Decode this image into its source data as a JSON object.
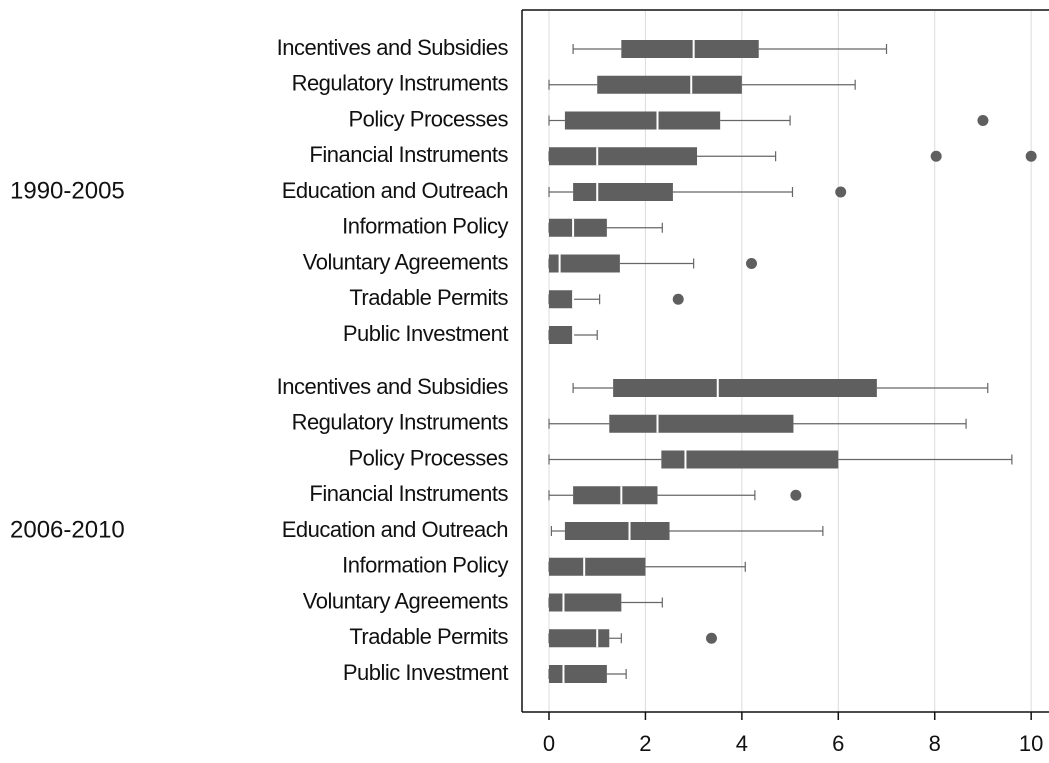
{
  "chart_data": {
    "type": "box",
    "xlim": [
      -0.56,
      10.37
    ],
    "xticks": [
      0,
      2,
      4,
      6,
      8,
      10
    ],
    "grid": true,
    "color": "#5f5f5f",
    "groups": [
      {
        "label": "1990-2005",
        "categories": [
          "Incentives and Subsidies",
          "Regulatory Instruments",
          "Policy Processes",
          "Financial Instruments",
          "Education and Outreach",
          "Information Policy",
          "Voluntary Agreements",
          "Tradable Permits",
          "Public Investment"
        ],
        "min": [
          0.5,
          0,
          0,
          0,
          0,
          0,
          0,
          0,
          0
        ],
        "q1": [
          1.5,
          1.0,
          0.33,
          0,
          0.5,
          0,
          0,
          0,
          0
        ],
        "median": [
          3.0,
          2.95,
          2.25,
          1.0,
          1.0,
          0.5,
          0.22,
          0.5,
          0.5
        ],
        "q3": [
          4.35,
          4.0,
          3.55,
          3.07,
          2.57,
          1.2,
          1.47,
          0.5,
          0.5
        ],
        "max": [
          7.0,
          6.35,
          5.0,
          4.7,
          5.05,
          2.35,
          3.0,
          1.05,
          1.0
        ],
        "outliers": [
          [],
          [],
          [
            9.0
          ],
          [
            8.03,
            10
          ],
          [
            6.05
          ],
          [],
          [
            4.2
          ],
          [
            2.68
          ],
          []
        ]
      },
      {
        "label": "2006-2010",
        "categories": [
          "Incentives and Subsidies",
          "Regulatory Instruments",
          "Policy Processes",
          "Financial Instruments",
          "Education and Outreach",
          "Information Policy",
          "Voluntary Agreements",
          "Tradable Permits",
          "Public Investment"
        ],
        "min": [
          0.5,
          0,
          0,
          0,
          0.05,
          0,
          0,
          0,
          0
        ],
        "q1": [
          1.33,
          1.25,
          2.33,
          0.5,
          0.33,
          0,
          0,
          0,
          0
        ],
        "median": [
          3.5,
          2.25,
          2.83,
          1.5,
          1.67,
          0.73,
          0.3,
          1.0,
          0.3
        ],
        "q3": [
          6.8,
          5.07,
          6.0,
          2.25,
          2.5,
          2.0,
          1.5,
          1.25,
          1.2
        ],
        "max": [
          9.1,
          8.65,
          9.6,
          4.27,
          5.68,
          4.07,
          2.35,
          1.5,
          1.6
        ],
        "outliers": [
          [],
          [],
          [],
          [
            5.12
          ],
          [],
          [],
          [],
          [
            3.37
          ],
          []
        ]
      }
    ]
  }
}
